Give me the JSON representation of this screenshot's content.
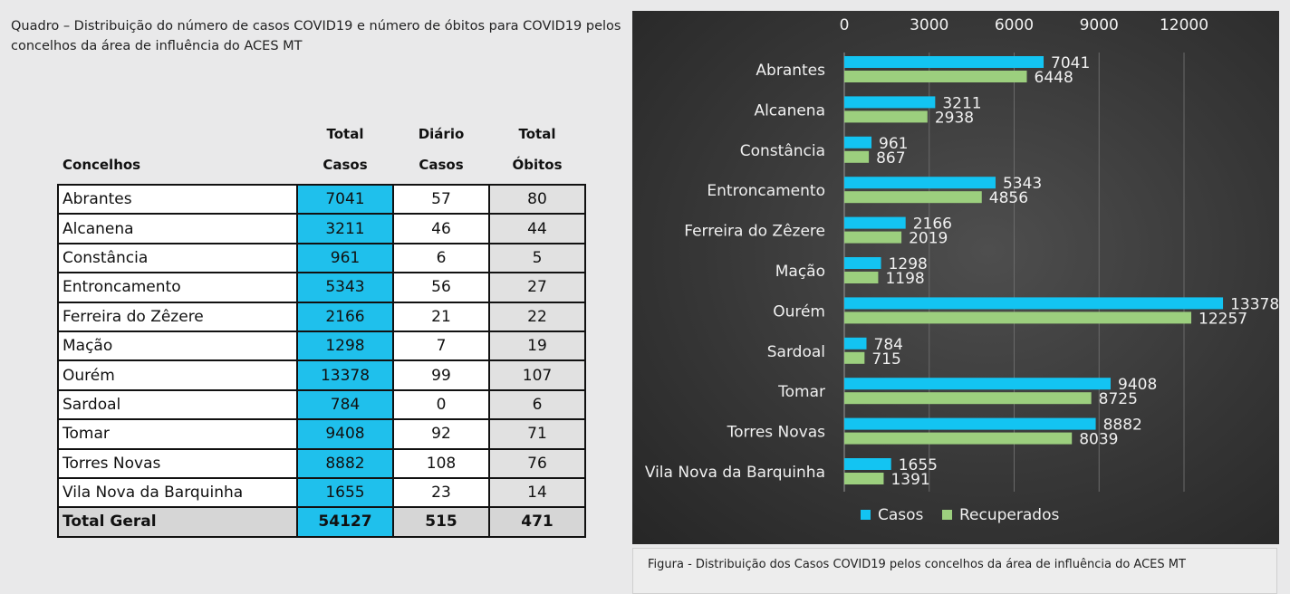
{
  "table": {
    "title": "Quadro – Distribuição do número de casos COVID19 e número de óbitos para COVID19 pelos concelhos da área de influência do ACES MT",
    "headers": {
      "name": "Concelhos",
      "cases_line1": "Total",
      "cases_line2": "Casos",
      "daily_line1": "Diário",
      "daily_line2": "Casos",
      "deaths_line1": "Total",
      "deaths_line2": "Óbitos"
    },
    "rows": [
      {
        "name": "Abrantes",
        "cases": "7041",
        "daily": "57",
        "deaths": "80"
      },
      {
        "name": "Alcanena",
        "cases": "3211",
        "daily": "46",
        "deaths": "44"
      },
      {
        "name": "Constância",
        "cases": "961",
        "daily": "6",
        "deaths": "5"
      },
      {
        "name": "Entroncamento",
        "cases": "5343",
        "daily": "56",
        "deaths": "27"
      },
      {
        "name": "Ferreira do Zêzere",
        "cases": "2166",
        "daily": "21",
        "deaths": "22"
      },
      {
        "name": "Mação",
        "cases": "1298",
        "daily": "7",
        "deaths": "19"
      },
      {
        "name": "Ourém",
        "cases": "13378",
        "daily": "99",
        "deaths": "107"
      },
      {
        "name": "Sardoal",
        "cases": "784",
        "daily": "0",
        "deaths": "6"
      },
      {
        "name": "Tomar",
        "cases": "9408",
        "daily": "92",
        "deaths": "71"
      },
      {
        "name": "Torres Novas",
        "cases": "8882",
        "daily": "108",
        "deaths": "76"
      },
      {
        "name": "Vila Nova da Barquinha",
        "cases": "1655",
        "daily": "23",
        "deaths": "14"
      }
    ],
    "total": {
      "name": "Total Geral",
      "cases": "54127",
      "daily": "515",
      "deaths": "471"
    }
  },
  "chart_data": {
    "type": "bar",
    "orientation": "horizontal",
    "categories": [
      "Abrantes",
      "Alcanena",
      "Constância",
      "Entroncamento",
      "Ferreira do Zêzere",
      "Mação",
      "Ourém",
      "Sardoal",
      "Tomar",
      "Torres Novas",
      "Vila Nova da Barquinha"
    ],
    "series": [
      {
        "name": "Casos",
        "color": "#13c4f2",
        "values": [
          7041,
          3211,
          961,
          5343,
          2166,
          1298,
          13378,
          784,
          9408,
          8882,
          1655
        ]
      },
      {
        "name": "Recuperados",
        "color": "#9ccf7e",
        "values": [
          6448,
          2938,
          867,
          4856,
          2019,
          1198,
          12257,
          715,
          8725,
          8039,
          1391
        ]
      }
    ],
    "xlim": [
      0,
      12000
    ],
    "xticks": [
      0,
      3000,
      6000,
      9000,
      12000
    ],
    "grid": true,
    "legend": "bottom",
    "axis_position": "top",
    "background": "#3a3a3a"
  },
  "caption": "Figura -  Distribuição dos Casos COVID19 pelos concelhos da área de influência do ACES MT",
  "colors": {
    "cases_cell": "#1fc0ec",
    "page_bg": "#e9e9ea"
  }
}
